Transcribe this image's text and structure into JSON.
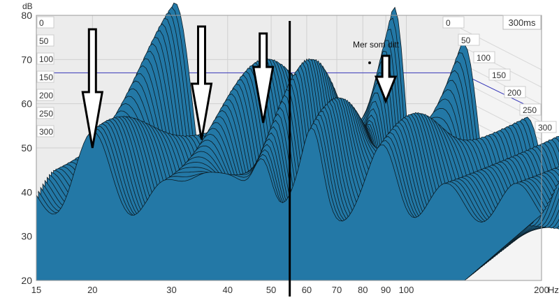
{
  "chart_data": {
    "type": "area",
    "title": "",
    "unit_y": "dB",
    "unit_x": "Hz",
    "time_window_label": "300ms",
    "ylim": [
      20,
      80
    ],
    "y_ticks": [
      "20",
      "30",
      "40",
      "50",
      "60",
      "70",
      "80"
    ],
    "xlim": [
      15,
      200
    ],
    "x_scale": "log",
    "x_ticks": [
      "15",
      "20",
      "30",
      "40",
      "50",
      "60",
      "70",
      "80",
      "90",
      "100",
      "200"
    ],
    "time_ticks_left": [
      "0",
      "50",
      "100",
      "150",
      "200",
      "250",
      "300"
    ],
    "time_ticks_right": [
      "0",
      "50",
      "100",
      "150",
      "200",
      "250",
      "300"
    ],
    "reference_level_db": 67,
    "annotation": "Mer som ditt",
    "arrow_targets_hz": [
      20,
      35,
      48,
      90
    ],
    "divider_hz": 55,
    "front_slice_peaks": [
      {
        "hz": 20,
        "db": 50
      },
      {
        "hz": 35,
        "db": 50
      },
      {
        "hz": 48,
        "db": 56
      },
      {
        "hz": 60,
        "db": 63
      }
    ],
    "waterfall_slices": 40,
    "colors": {
      "fill": "#2378a6",
      "line": "#0b1a22",
      "grid": "#d0d0d0",
      "reference": "#3434b8"
    }
  }
}
